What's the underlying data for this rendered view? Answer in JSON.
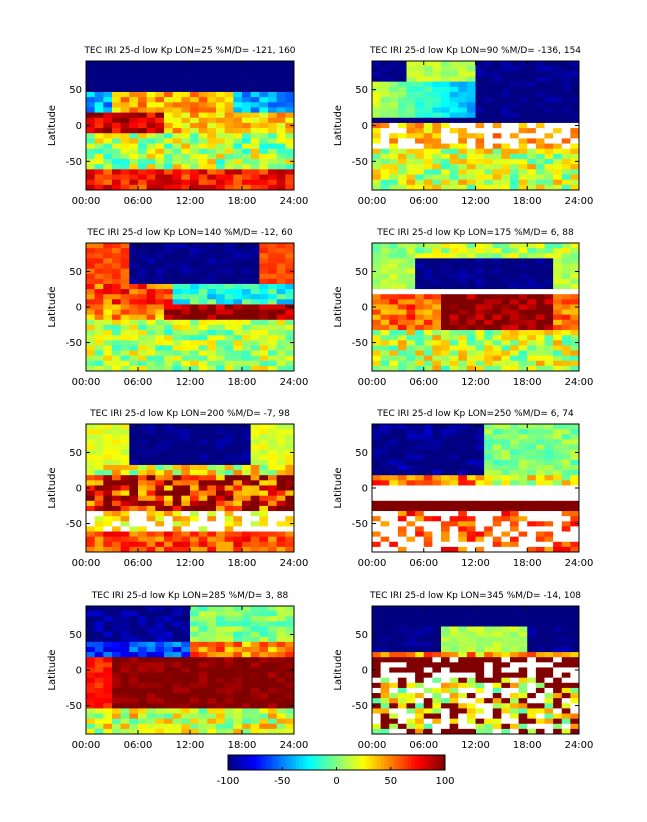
{
  "figure": {
    "ylabel": "Latitude",
    "xticks": [
      "00:00",
      "06:00",
      "12:00",
      "18:00",
      "24:00"
    ],
    "yticks": [
      50,
      0,
      -50
    ],
    "xlim": [
      0,
      24
    ],
    "ylim": [
      -90,
      90
    ]
  },
  "chart_data": [
    {
      "type": "heatmap",
      "title": "TEC IRI 25-d low Kp LON=25 %M/D= -121,  160",
      "xlabel": "",
      "ylabel": "Latitude",
      "lon": 25,
      "x_ticks": [
        "00:00",
        "06:00",
        "12:00",
        "18:00",
        "24:00"
      ],
      "y_ticks": [
        50,
        0,
        -50
      ],
      "xlim": [
        0,
        24
      ],
      "ylim": [
        -90,
        90
      ]
    },
    {
      "type": "heatmap",
      "title": "TEC IRI 25-d low Kp LON=90 %M/D= -136,  154",
      "xlabel": "",
      "ylabel": "Latitude",
      "lon": 90,
      "x_ticks": [
        "00:00",
        "06:00",
        "12:00",
        "18:00",
        "24:00"
      ],
      "y_ticks": [
        50,
        0,
        -50
      ],
      "xlim": [
        0,
        24
      ],
      "ylim": [
        -90,
        90
      ]
    },
    {
      "type": "heatmap",
      "title": "TEC IRI 25-d low Kp LON=140 %M/D=  -12,   60",
      "xlabel": "",
      "ylabel": "Latitude",
      "lon": 140,
      "x_ticks": [
        "00:00",
        "06:00",
        "12:00",
        "18:00",
        "24:00"
      ],
      "y_ticks": [
        50,
        0,
        -50
      ],
      "xlim": [
        0,
        24
      ],
      "ylim": [
        -90,
        90
      ]
    },
    {
      "type": "heatmap",
      "title": "TEC IRI 25-d low Kp LON=175 %M/D=    6,   88",
      "xlabel": "",
      "ylabel": "Latitude",
      "lon": 175,
      "x_ticks": [
        "00:00",
        "06:00",
        "12:00",
        "18:00",
        "24:00"
      ],
      "y_ticks": [
        50,
        0,
        -50
      ],
      "xlim": [
        0,
        24
      ],
      "ylim": [
        -90,
        90
      ]
    },
    {
      "type": "heatmap",
      "title": "TEC IRI 25-d low Kp LON=200 %M/D=   -7,   98",
      "xlabel": "",
      "ylabel": "Latitude",
      "lon": 200,
      "x_ticks": [
        "00:00",
        "06:00",
        "12:00",
        "18:00",
        "24:00"
      ],
      "y_ticks": [
        50,
        0,
        -50
      ],
      "xlim": [
        0,
        24
      ],
      "ylim": [
        -90,
        90
      ]
    },
    {
      "type": "heatmap",
      "title": "TEC IRI 25-d low Kp LON=250 %M/D=    6,   74",
      "xlabel": "",
      "ylabel": "Latitude",
      "lon": 250,
      "x_ticks": [
        "00:00",
        "06:00",
        "12:00",
        "18:00",
        "24:00"
      ],
      "y_ticks": [
        50,
        0,
        -50
      ],
      "xlim": [
        0,
        24
      ],
      "ylim": [
        -90,
        90
      ]
    },
    {
      "type": "heatmap",
      "title": "TEC IRI 25-d low Kp LON=285 %M/D=    3,   88",
      "xlabel": "",
      "ylabel": "Latitude",
      "lon": 285,
      "x_ticks": [
        "00:00",
        "06:00",
        "12:00",
        "18:00",
        "24:00"
      ],
      "y_ticks": [
        50,
        0,
        -50
      ],
      "xlim": [
        0,
        24
      ],
      "ylim": [
        -90,
        90
      ]
    },
    {
      "type": "heatmap",
      "title": "TEC IRI 25-d low Kp LON=345 %M/D=  -14,  108",
      "xlabel": "",
      "ylabel": "Latitude",
      "lon": 345,
      "x_ticks": [
        "00:00",
        "06:00",
        "12:00",
        "18:00",
        "24:00"
      ],
      "y_ticks": [
        50,
        0,
        -50
      ],
      "xlim": [
        0,
        24
      ],
      "ylim": [
        -90,
        90
      ]
    }
  ],
  "colorbar": {
    "ticks": [
      -100,
      -50,
      0,
      50,
      100
    ],
    "range": [
      -100,
      100
    ],
    "colors": [
      "#00008f",
      "#0000ff",
      "#00ffff",
      "#ffff00",
      "#ff0000",
      "#800000"
    ]
  }
}
